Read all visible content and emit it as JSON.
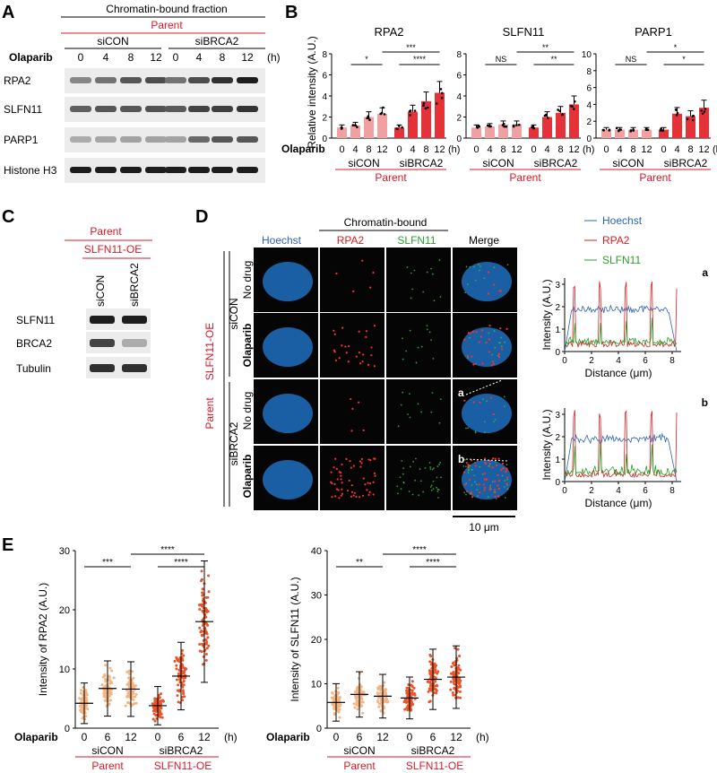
{
  "panels": {
    "A": {
      "letter": "A",
      "header": "Chromatin-bound fraction",
      "parent": "Parent",
      "group1": "siCON",
      "group2": "siBRCA2",
      "treatment": "Olaparib",
      "times": [
        "0",
        "4",
        "8",
        "12",
        "0",
        "4",
        "8",
        "12"
      ],
      "unit": "(h)",
      "rows": [
        "RPA2",
        "SLFN11",
        "PARP1",
        "Histone H3"
      ]
    },
    "B": {
      "letter": "B",
      "ylabel": "Relative intensity (A.U.)",
      "treatment": "Olaparib",
      "times": [
        "0",
        "4",
        "8",
        "12",
        "0",
        "4",
        "8",
        "12"
      ],
      "unit": "(h)",
      "group1": "siCON",
      "group2": "siBRCA2",
      "parent": "Parent",
      "charts": [
        {
          "title": "RPA2",
          "ylim": [
            0,
            8
          ],
          "ticks": [
            "0",
            "2",
            "4",
            "6",
            "8"
          ],
          "values": [
            1.0,
            1.2,
            2.0,
            2.3,
            1.0,
            2.5,
            3.5,
            4.3
          ],
          "sig_top": "***",
          "sig_left": "*",
          "sig_right": "****"
        },
        {
          "title": "SLFN11",
          "ylim": [
            0,
            8
          ],
          "ticks": [
            "0",
            "2",
            "4",
            "6",
            "8"
          ],
          "values": [
            1.0,
            1.1,
            1.3,
            1.3,
            1.0,
            2.0,
            2.4,
            3.2
          ],
          "sig_top": "**",
          "sig_left": "NS",
          "sig_right": "**"
        },
        {
          "title": "PARP1",
          "ylim": [
            0,
            10
          ],
          "ticks": [
            "0",
            "2",
            "4",
            "6",
            "8",
            "10"
          ],
          "values": [
            1.0,
            1.0,
            1.0,
            1.0,
            1.0,
            2.9,
            2.6,
            3.6
          ],
          "sig_top": "*",
          "sig_left": "NS",
          "sig_right": "*"
        }
      ]
    },
    "C": {
      "letter": "C",
      "parent": "Parent",
      "line": "SLFN11-OE",
      "lanes": [
        "siCON",
        "siBRCA2"
      ],
      "rows": [
        "SLFN11",
        "BRCA2",
        "Tubulin"
      ]
    },
    "D": {
      "letter": "D",
      "chromatin": "Chromatin-bound",
      "cols": [
        "Hoechst",
        "RPA2",
        "SLFN11",
        "Merge"
      ],
      "side_parent": "Parent",
      "side_line": "SLFN11-OE",
      "groups": [
        "siCON",
        "siBRCA2"
      ],
      "rows": [
        "No drug",
        "Olaparib",
        "No drug",
        "Olaparib"
      ],
      "scale": "10 μm",
      "marker_a": "a",
      "marker_b": "b",
      "legend": [
        "Hoechst",
        "RPA2",
        "SLFN11"
      ],
      "profile_a": {
        "label": "a",
        "ylabel": "Intensity (A.U.)",
        "xlabel": "Distance (μm)",
        "xticks": [
          "0",
          "2",
          "4",
          "6",
          "8"
        ],
        "yticks": [
          "0",
          "1",
          "2",
          "3"
        ]
      },
      "profile_b": {
        "label": "b",
        "ylabel": "Intensity (A.U.)",
        "xlabel": "Distance (μm)",
        "xticks": [
          "0",
          "2",
          "4",
          "6",
          "8"
        ],
        "yticks": [
          "0",
          "1",
          "2",
          "3"
        ]
      }
    },
    "E": {
      "letter": "E",
      "treatment": "Olaparib",
      "times": [
        "0",
        "6",
        "12",
        "0",
        "6",
        "12"
      ],
      "unit": "(h)",
      "group1": "siCON",
      "group2": "siBRCA2",
      "parent": "Parent",
      "line": "SLFN11-OE",
      "left": {
        "ylabel": "Intensity of RPA2 (A.U.)",
        "ylim": [
          0,
          30
        ],
        "ticks": [
          "0",
          "10",
          "20",
          "30"
        ],
        "medians": [
          4.2,
          6.7,
          6.6,
          3.8,
          8.8,
          18.0
        ],
        "sig_top": "****",
        "sig_left": "***",
        "sig_right": "****"
      },
      "right": {
        "ylabel": "Intensity of SLFN11 (A.U.)",
        "ylim": [
          0,
          40
        ],
        "ticks": [
          "0",
          "10",
          "20",
          "30",
          "40"
        ],
        "medians": [
          5.8,
          7.6,
          7.2,
          6.8,
          11.0,
          11.5
        ],
        "sig_top": "****",
        "sig_left": "**",
        "sig_right": "****"
      }
    }
  },
  "colors": {
    "red": "#d7192a",
    "bar_light": "#f0a0a0",
    "bar_dark": "#e53238",
    "dot_light": "#f5b583",
    "dot_dark": "#e8552a",
    "hoechst": "#2e63b8",
    "rpa2": "#d42020",
    "slfn11": "#2aa02a"
  }
}
